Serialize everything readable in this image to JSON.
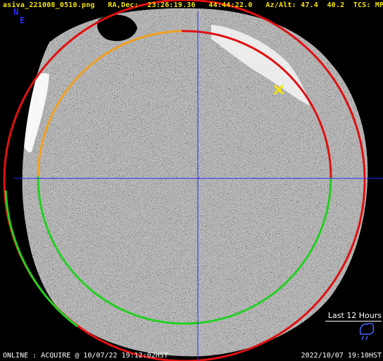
{
  "header": {
    "filename": "asiva_221008_0510.png",
    "radec_label": "RA,Dec:",
    "ra": "23:26:19.36",
    "dec": "44:44:22.0",
    "azalt_label": "Az/Alt:",
    "az": "47.4",
    "alt": "40.2",
    "tcs_label": "TCS:",
    "tcs": "MP"
  },
  "compass": {
    "north": "N",
    "east": "E"
  },
  "status": {
    "text": "ONLINE : ACQUIRE @ 10/07/22 19:12:02HST"
  },
  "timestamp": {
    "text": "2022/10/07 19:10HST"
  },
  "history": {
    "label": "Last 12 Hours"
  },
  "icons": {
    "target_marker": "x-cross-icon",
    "weather_glyph": "cloud-rain-icon"
  },
  "colors": {
    "header_text": "#f5e400",
    "crosshair": "#2b2bff",
    "horizon_circle": "#e01010",
    "limit_circle_past": "#f0a020",
    "limit_circle_ok": "#22d022",
    "target_marker": "#f5e400",
    "direction_text": "#2a2aff",
    "weather_glyph": "#4466ff"
  }
}
